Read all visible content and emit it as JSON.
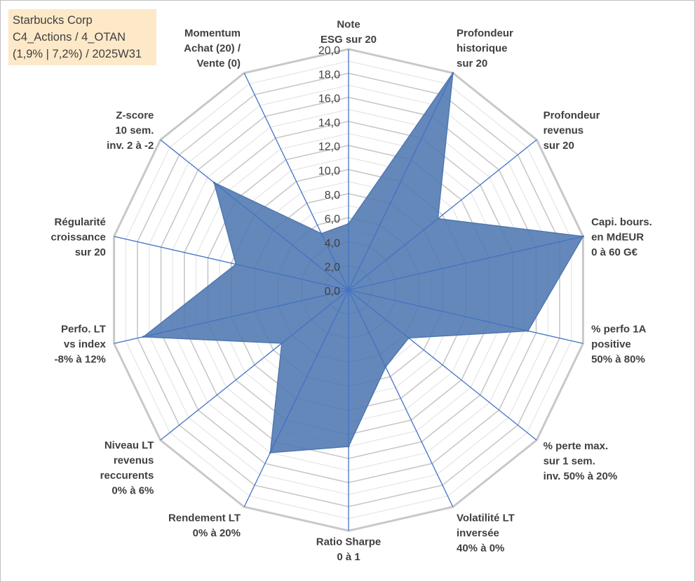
{
  "title_box": {
    "line1": "Starbucks Corp",
    "line2": "C4_Actions / 4_OTAN",
    "line3": "(1,9% | 7,2%) / 2025W31"
  },
  "chart_data": {
    "type": "radar",
    "range": [
      0,
      20
    ],
    "ticks": [
      "0,0",
      "2,0",
      "4,0",
      "6,0",
      "8,0",
      "10,0",
      "12,0",
      "14,0",
      "16,0",
      "18,0",
      "20,0"
    ],
    "axes": [
      {
        "label": [
          "Note",
          "ESG sur 20"
        ],
        "value": 5.5
      },
      {
        "label": [
          "Profondeur",
          "historique",
          "sur 20"
        ],
        "value": 20
      },
      {
        "label": [
          "Profondeur",
          "revenus",
          "sur 20"
        ],
        "value": 9.5
      },
      {
        "label": [
          "Capi. bours.",
          "en MdEUR",
          "0 à 60 G€"
        ],
        "value": 20
      },
      {
        "label": [
          "% perfo 1A",
          "positive",
          "50% à 80%"
        ],
        "value": 15.3
      },
      {
        "label": [
          "% perte max.",
          "sur 1 sem.",
          "inv. 50% à 20%"
        ],
        "value": 6.4
      },
      {
        "label": [
          "Volatilité LT",
          "inversée",
          "40% à 0%"
        ],
        "value": 7.1
      },
      {
        "label": [
          "Ratio Sharpe",
          "0 à 1"
        ],
        "value": 13
      },
      {
        "label": [
          "Rendement LT",
          "0% à 20%"
        ],
        "value": 15
      },
      {
        "label": [
          "Niveau LT",
          "revenus",
          "reccurents",
          "0% à 6%"
        ],
        "value": 7.1
      },
      {
        "label": [
          "Perfo. LT",
          "vs index",
          "-8% à 12%"
        ],
        "value": 17.5
      },
      {
        "label": [
          "Régularité",
          "croissance",
          "sur 20"
        ],
        "value": 9.6
      },
      {
        "label": [
          "Z-score",
          "10 sem.",
          "inv. 2 à -2"
        ],
        "value": 14.3
      },
      {
        "label": [
          "Momentum",
          "Achat (20) /",
          "Vente (0)"
        ],
        "value": 5.2
      }
    ],
    "colors": {
      "fill": "#4f78b0",
      "spoke": "#4472c4",
      "ring_major": "#c8c8c8",
      "ring_minor": "#e0e0e0"
    }
  }
}
